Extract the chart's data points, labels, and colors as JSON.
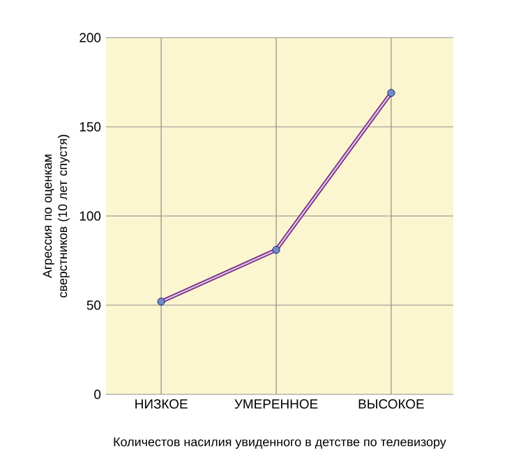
{
  "chart_data": {
    "type": "line",
    "xlabel": "Количестов насилия увиденного в детстве по телевизору",
    "ylabel": "Агрессия по оценкам сверстников (10 лет спустя)",
    "categories": [
      "НИЗКОЕ",
      "УМЕРЕННОЕ",
      "ВЫСОКОЕ"
    ],
    "series": [
      {
        "color": "#7b2d8b",
        "values": [
          52,
          81,
          169
        ]
      }
    ],
    "ylim": [
      0,
      200
    ],
    "yticks": [
      0,
      50,
      100,
      150,
      200
    ],
    "grid": true,
    "marker": "circle",
    "line_style": "solid"
  }
}
